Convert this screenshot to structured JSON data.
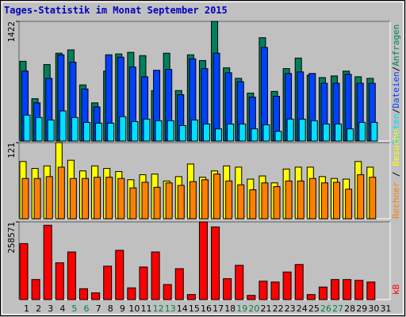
{
  "chart_data": [
    {
      "type": "bar",
      "title": "Tages-Statistik im Monat September 2015",
      "categories": [
        "1",
        "2",
        "3",
        "4",
        "5",
        "6",
        "7",
        "8",
        "9",
        "10",
        "11",
        "12",
        "13",
        "14",
        "15",
        "16",
        "17",
        "18",
        "19",
        "20",
        "21",
        "22",
        "23",
        "24",
        "25",
        "26",
        "27",
        "28",
        "29",
        "30",
        "31"
      ],
      "highlight_categories": [
        4,
        5,
        11,
        12,
        18,
        19,
        25,
        26
      ],
      "highlight_color": "#008040",
      "ylim": [
        0,
        1422
      ],
      "yticks": [
        1422
      ],
      "legend_separator": "/",
      "series": [
        {
          "name": "Anfragen",
          "color": "#00805c",
          "values": [
            948,
            503,
            909,
            1044,
            1083,
            667,
            454,
            831,
            1035,
            1054,
            1015,
            600,
            1044,
            600,
            1025,
            957,
            1422,
            870,
            745,
            570,
            1228,
            590,
            861,
            986,
            783,
            754,
            774,
            831,
            764,
            745,
            null
          ]
        },
        {
          "name": "Dateien",
          "color": "#0040ff",
          "values": [
            832,
            454,
            745,
            1025,
            938,
            619,
            406,
            1025,
            996,
            880,
            764,
            841,
            851,
            551,
            977,
            861,
            1044,
            812,
            706,
            522,
            1112,
            532,
            803,
            822,
            803,
            687,
            687,
            793,
            687,
            687,
            null
          ]
        },
        {
          "name": "Seiten",
          "color": "#00e0ff",
          "values": [
            309,
            280,
            251,
            358,
            280,
            222,
            213,
            213,
            290,
            232,
            261,
            242,
            242,
            184,
            251,
            203,
            145,
            203,
            203,
            145,
            193,
            116,
            261,
            261,
            242,
            203,
            203,
            145,
            222,
            222,
            null
          ]
        }
      ]
    },
    {
      "type": "bar",
      "ylim": [
        0,
        121
      ],
      "yticks": [
        121
      ],
      "legend_separator": " / ",
      "series": [
        {
          "name": "Besuche",
          "color": "#ffff00",
          "values": [
            91,
            80,
            84,
            121,
            93,
            76,
            84,
            80,
            75,
            62,
            70,
            71,
            60,
            67,
            87,
            66,
            76,
            84,
            82,
            63,
            68,
            57,
            79,
            82,
            82,
            67,
            64,
            63,
            91,
            82,
            null
          ]
        },
        {
          "name": "Rechner",
          "color": "#ff8000",
          "values": [
            64,
            64,
            67,
            82,
            64,
            64,
            66,
            66,
            64,
            49,
            58,
            50,
            57,
            53,
            59,
            62,
            71,
            60,
            54,
            46,
            57,
            51,
            60,
            60,
            64,
            57,
            58,
            47,
            70,
            66,
            null
          ]
        }
      ]
    },
    {
      "type": "bar",
      "ylim": [
        0,
        258571
      ],
      "yticks": [
        258571
      ],
      "series": [
        {
          "name": "kB",
          "color": "#ff0000",
          "values": [
            186260,
            66720,
            247420,
            122320,
            158460,
            36140,
            22240,
            111200,
            164020,
            38920,
            108420,
            158460,
            50040,
            102860,
            16680,
            258571,
            241860,
            69500,
            113980,
            13900,
            61160,
            58380,
            91740,
            116760,
            16680,
            41700,
            66720,
            66720,
            63940,
            58380,
            null
          ]
        }
      ]
    }
  ]
}
